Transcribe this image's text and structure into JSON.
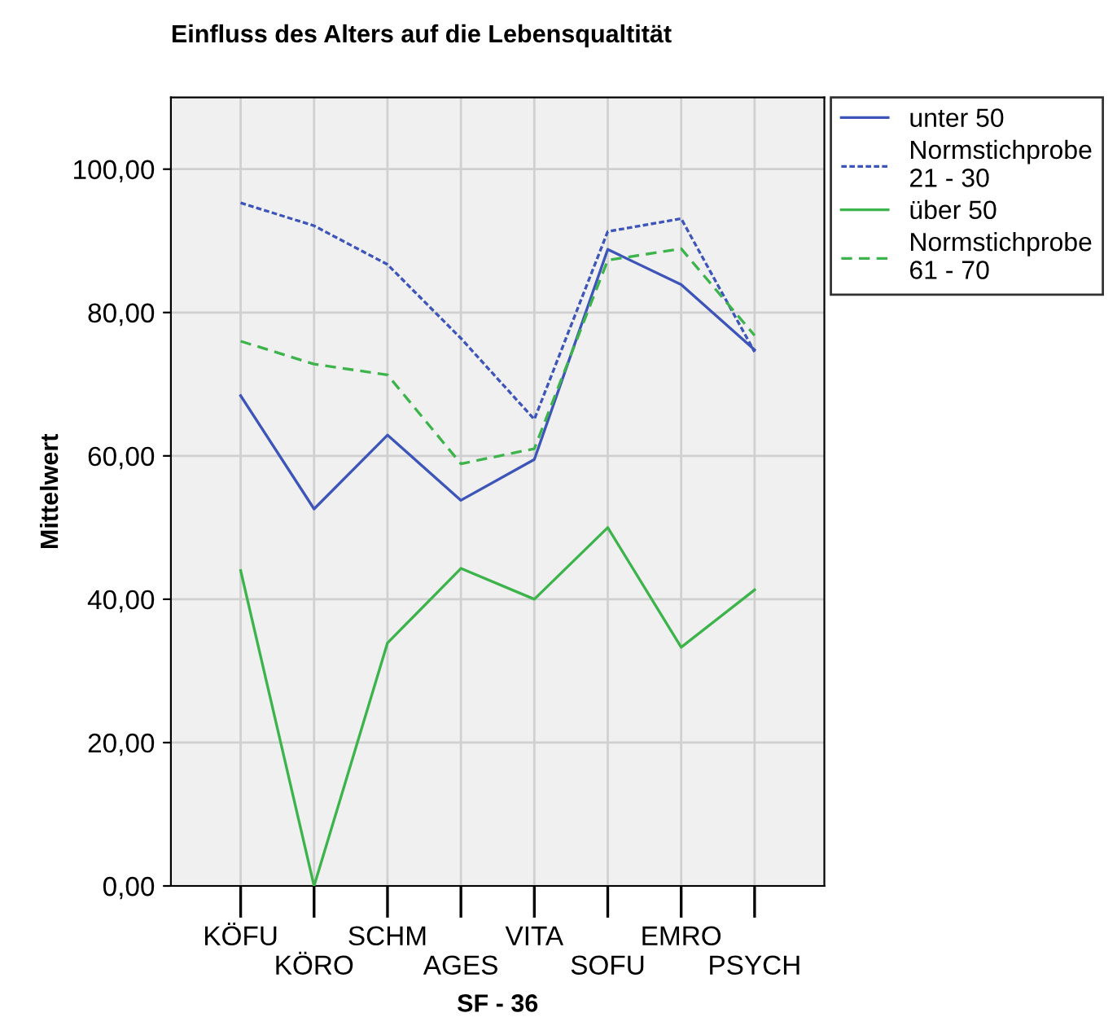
{
  "chart_data": {
    "type": "line",
    "title": "Einfluss des Alters auf die Lebensqualtität",
    "xlabel": "SF - 36",
    "ylabel": "Mittelwert",
    "categories": [
      "KÖFU",
      "KÖRO",
      "SCHM",
      "AGES",
      "VITA",
      "SOFU",
      "EMRO",
      "PSYCH"
    ],
    "series": [
      {
        "name": "unter 50",
        "color": "#3d55b8",
        "line_style": "solid",
        "values": [
          68.4,
          52.6,
          62.9,
          53.8,
          59.5,
          88.8,
          83.9,
          74.8
        ]
      },
      {
        "name": "Normstichprobe\n21 - 30",
        "color": "#3d55b8",
        "line_style": "dotted",
        "values": [
          95.3,
          92.1,
          86.7,
          76.4,
          65.1,
          91.3,
          93.1,
          74.5
        ]
      },
      {
        "name": "über 50",
        "color": "#3cb44b",
        "line_style": "solid",
        "values": [
          44.0,
          0.0,
          33.9,
          44.3,
          40.0,
          50.0,
          33.3,
          41.3
        ]
      },
      {
        "name": "Normstichprobe\n61 - 70",
        "color": "#3cb44b",
        "line_style": "dashed",
        "values": [
          76.0,
          72.8,
          71.3,
          58.9,
          61.0,
          87.3,
          88.9,
          76.8
        ]
      }
    ],
    "ylim": [
      0,
      110
    ],
    "yticks": [
      {
        "value": 0,
        "label": "0,00"
      },
      {
        "value": 20,
        "label": "20,00"
      },
      {
        "value": 40,
        "label": "40,00"
      },
      {
        "value": 60,
        "label": "60,00"
      },
      {
        "value": 80,
        "label": "80,00"
      },
      {
        "value": 100,
        "label": "100,00"
      }
    ],
    "grid": true,
    "legend": "top right",
    "marker": "none"
  }
}
